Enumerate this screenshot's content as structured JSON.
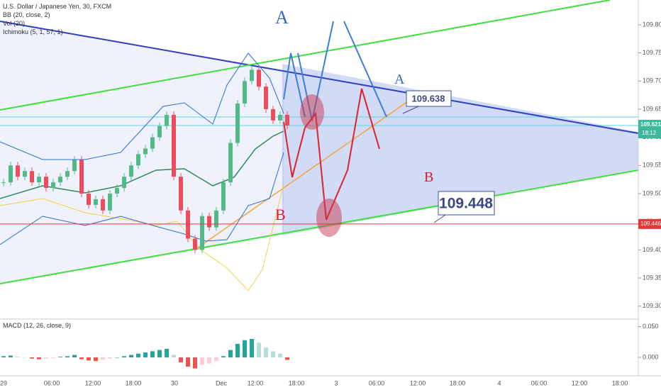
{
  "chart_data": [
    {
      "type": "candlestick",
      "title": "U.S. Dollar / Japanese Yen, 30, FXCM",
      "indicators": [
        "BB (20, close, 2)",
        "Vol (20)",
        "Ichimoku (5, 1, 57, 1)"
      ],
      "close": [
        109.52,
        109.55,
        109.53,
        109.54,
        109.52,
        109.53,
        109.51,
        109.52,
        109.53,
        109.54,
        109.56,
        109.5,
        109.48,
        109.49,
        109.47,
        109.5,
        109.51,
        109.53,
        109.55,
        109.57,
        109.58,
        109.6,
        109.62,
        109.64,
        109.53,
        109.47,
        109.42,
        109.4,
        109.46,
        109.44,
        109.47,
        109.52,
        109.59,
        109.66,
        109.7,
        109.72,
        109.69,
        109.65,
        109.63,
        109.64,
        109.621
      ],
      "up_color": "#53b987",
      "down_color": "#eb4d5c",
      "ylim": [
        109.277,
        109.844
      ],
      "yticks": [
        {
          "value": 109.3,
          "label": "109.300"
        },
        {
          "value": 109.35,
          "label": "109.350"
        },
        {
          "value": 109.4,
          "label": "109.400"
        },
        {
          "value": 109.45,
          "label": "109.450"
        },
        {
          "value": 109.5,
          "label": "109.500"
        },
        {
          "value": 109.55,
          "label": "109.550"
        },
        {
          "value": 109.6,
          "label": "109.600"
        },
        {
          "value": 109.65,
          "label": "109.650"
        },
        {
          "value": 109.7,
          "label": "109.700"
        },
        {
          "value": 109.75,
          "label": "109.750"
        },
        {
          "value": 109.8,
          "label": "109.800"
        }
      ],
      "x_labels": [
        "29",
        "06:00",
        "12:00",
        "18:00",
        "30",
        "Dec",
        "12:00",
        "18:00",
        "3",
        "06:00",
        "12:00",
        "18:00",
        "4",
        "06:00",
        "12:00",
        "18:00"
      ],
      "last_price": 109.621,
      "countdown": "18:12",
      "horizontal_line": 109.446,
      "annotations": [
        "A",
        "A",
        "B",
        "B",
        109.638,
        109.448
      ]
    },
    {
      "type": "bar",
      "title": "MACD (12, 26, close, 9)",
      "values": [
        0.002,
        0.003,
        0.001,
        0.0,
        -0.002,
        -0.003,
        -0.002,
        -0.001,
        0.001,
        0.002,
        0.004,
        -0.003,
        -0.005,
        -0.006,
        -0.004,
        -0.002,
        0.0,
        0.002,
        0.004,
        0.006,
        0.008,
        0.01,
        0.012,
        0.014,
        0.004,
        -0.008,
        -0.015,
        -0.018,
        -0.012,
        -0.01,
        -0.006,
        0.002,
        0.012,
        0.022,
        0.028,
        0.03,
        0.024,
        0.016,
        0.01,
        0.006,
        -0.004
      ],
      "ylim": [
        -0.03,
        0.06
      ],
      "yticks": [
        {
          "value": 0,
          "label": "0.000"
        },
        {
          "value": 0.05,
          "label": "0.050"
        }
      ]
    }
  ]
}
